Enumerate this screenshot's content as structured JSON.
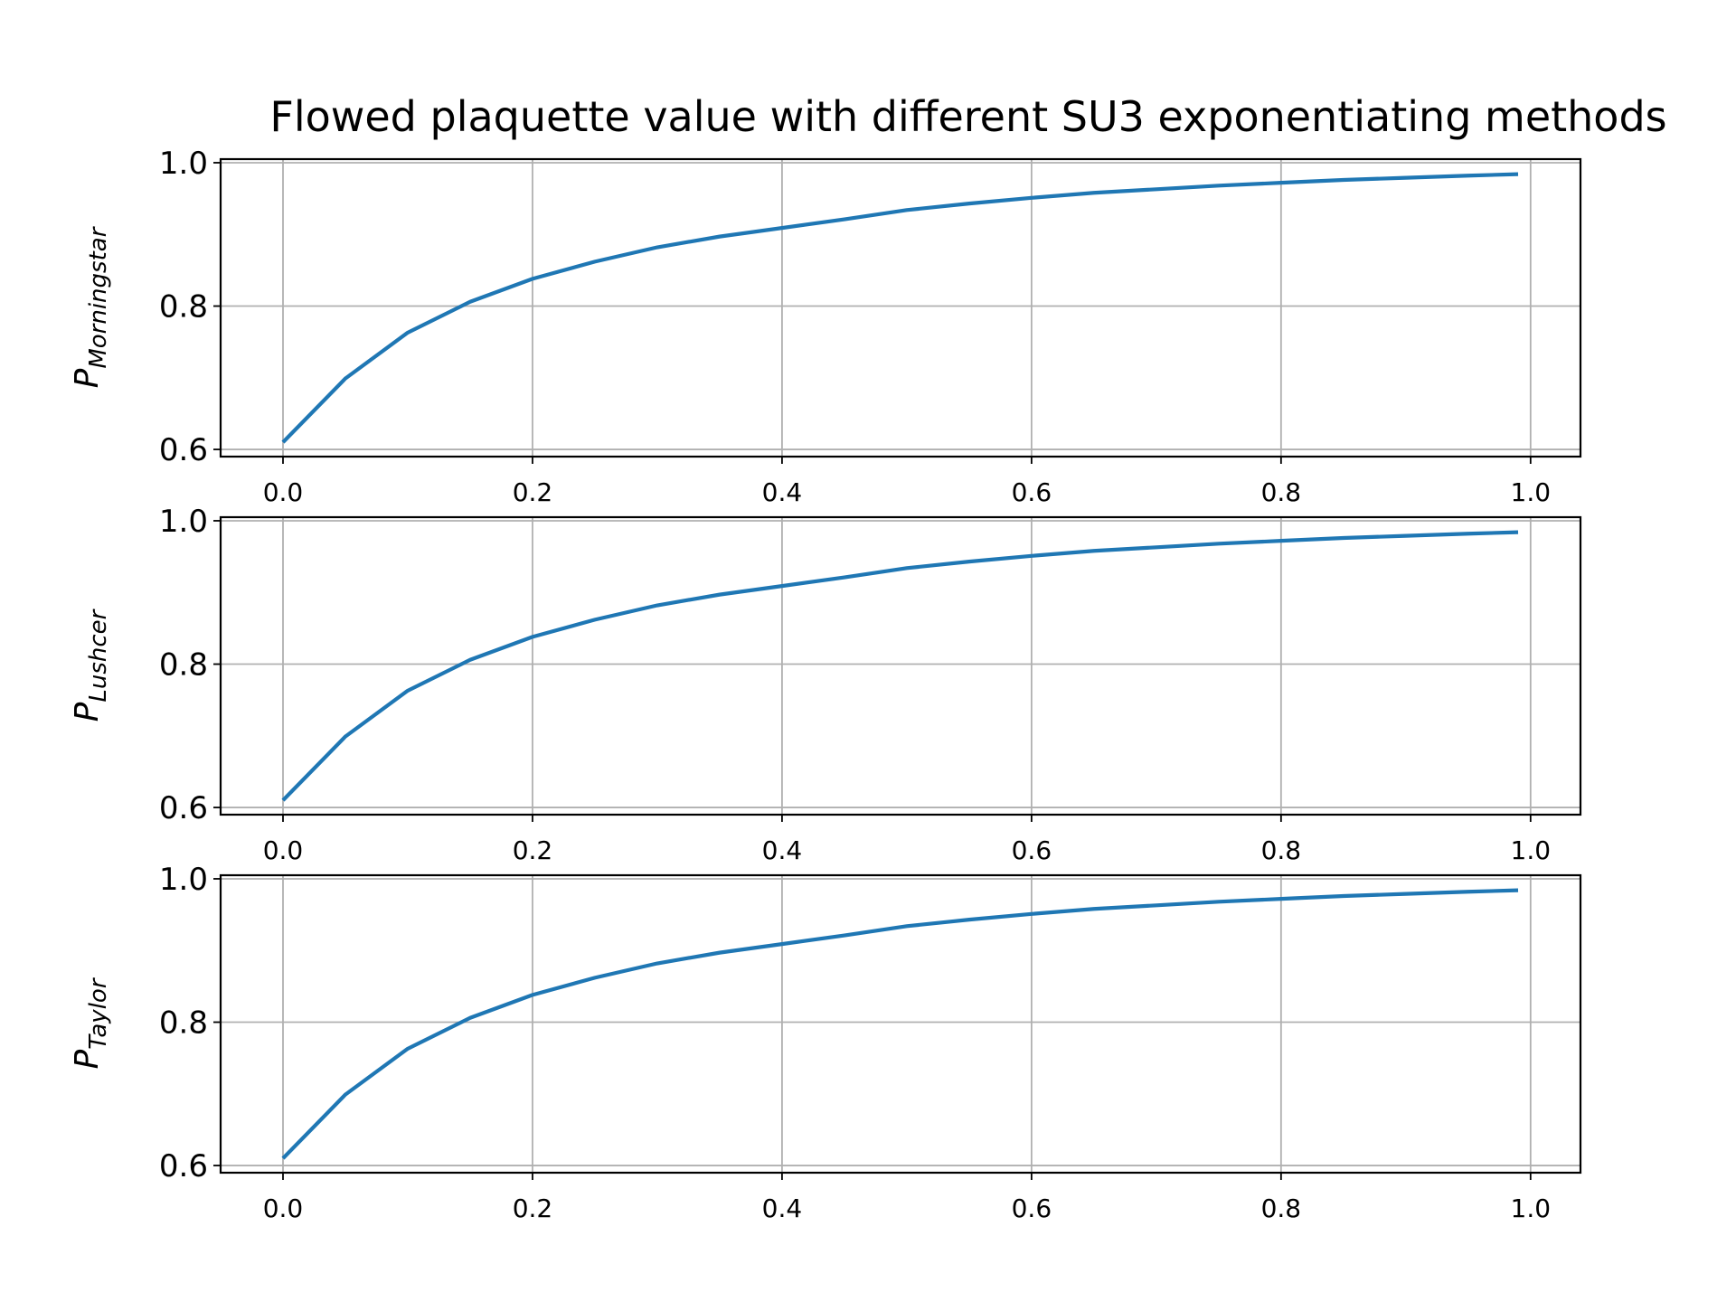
{
  "chart_data": {
    "type": "line",
    "title": "Flowed plaquette value with different SU3 exponentiating methods",
    "colors": {
      "series": "#1f77b4",
      "grid": "#b0b0b0",
      "frame": "#000000"
    },
    "grid": true,
    "subplots": [
      {
        "ylabel": "P",
        "ylabel_subscript": "Morningstar",
        "xlim": [
          -0.05,
          1.04
        ],
        "ylim": [
          0.59,
          1.005
        ],
        "xticks": [
          "0.0",
          "0.2",
          "0.4",
          "0.6",
          "0.8",
          "1.0"
        ],
        "yticks": [
          "0.6",
          "0.8",
          "1.0"
        ],
        "x": [
          0.0,
          0.05,
          0.1,
          0.15,
          0.2,
          0.25,
          0.3,
          0.35,
          0.4,
          0.45,
          0.5,
          0.55,
          0.6,
          0.65,
          0.7,
          0.75,
          0.8,
          0.85,
          0.9,
          0.95,
          0.99
        ],
        "y": [
          0.61,
          0.699,
          0.763,
          0.806,
          0.838,
          0.862,
          0.882,
          0.897,
          0.909,
          0.921,
          0.934,
          0.943,
          0.951,
          0.958,
          0.963,
          0.968,
          0.972,
          0.976,
          0.979,
          0.982,
          0.984
        ]
      },
      {
        "ylabel": "P",
        "ylabel_subscript": "Lushcer",
        "xlim": [
          -0.05,
          1.04
        ],
        "ylim": [
          0.59,
          1.005
        ],
        "xticks": [
          "0.0",
          "0.2",
          "0.4",
          "0.6",
          "0.8",
          "1.0"
        ],
        "yticks": [
          "0.6",
          "0.8",
          "1.0"
        ],
        "x": [
          0.0,
          0.05,
          0.1,
          0.15,
          0.2,
          0.25,
          0.3,
          0.35,
          0.4,
          0.45,
          0.5,
          0.55,
          0.6,
          0.65,
          0.7,
          0.75,
          0.8,
          0.85,
          0.9,
          0.95,
          0.99
        ],
        "y": [
          0.61,
          0.699,
          0.763,
          0.806,
          0.838,
          0.862,
          0.882,
          0.897,
          0.909,
          0.921,
          0.934,
          0.943,
          0.951,
          0.958,
          0.963,
          0.968,
          0.972,
          0.976,
          0.979,
          0.982,
          0.984
        ]
      },
      {
        "ylabel": "P",
        "ylabel_subscript": "Taylor",
        "xlim": [
          -0.05,
          1.04
        ],
        "ylim": [
          0.59,
          1.005
        ],
        "xticks": [
          "0.0",
          "0.2",
          "0.4",
          "0.6",
          "0.8",
          "1.0"
        ],
        "yticks": [
          "0.6",
          "0.8",
          "1.0"
        ],
        "x": [
          0.0,
          0.05,
          0.1,
          0.15,
          0.2,
          0.25,
          0.3,
          0.35,
          0.4,
          0.45,
          0.5,
          0.55,
          0.6,
          0.65,
          0.7,
          0.75,
          0.8,
          0.85,
          0.9,
          0.95,
          0.99
        ],
        "y": [
          0.61,
          0.699,
          0.763,
          0.806,
          0.838,
          0.862,
          0.882,
          0.897,
          0.909,
          0.921,
          0.934,
          0.943,
          0.951,
          0.958,
          0.963,
          0.968,
          0.972,
          0.976,
          0.979,
          0.982,
          0.984
        ]
      }
    ]
  }
}
